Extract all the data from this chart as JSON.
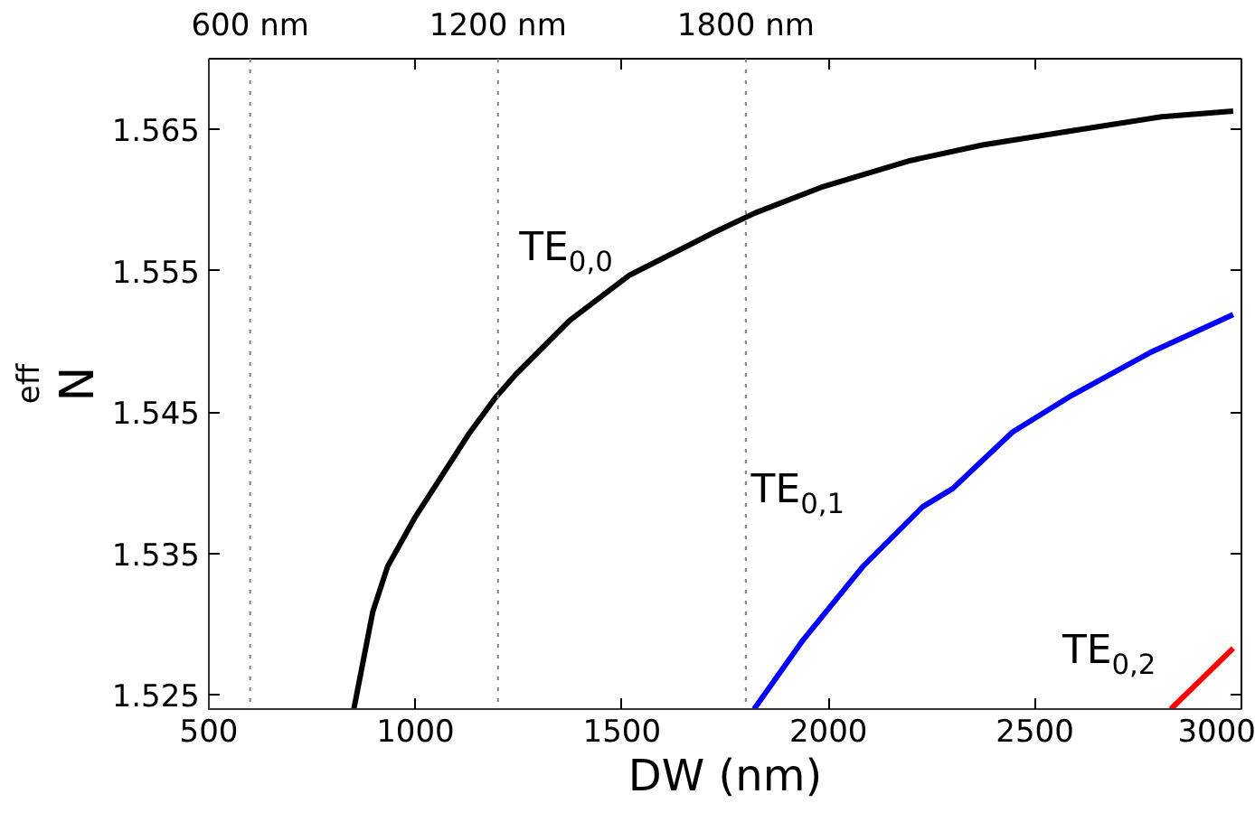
{
  "chart_data": {
    "type": "line",
    "xlabel": "DW (nm)",
    "ylabel": "N$_{eff}$",
    "xlim": [
      500,
      3000
    ],
    "xticks": [
      500,
      1000,
      1500,
      2000,
      2500,
      3000
    ],
    "ylim": [
      1.524,
      1.57
    ],
    "yticks": [
      1.525,
      1.535,
      1.545,
      1.555,
      1.565
    ],
    "grid": false,
    "line_style": "solid",
    "marker": "none",
    "series": [
      {
        "color": "#000000",
        "x": [
          851,
          897,
          933,
          998,
          1128,
          1193,
          1244,
          1374,
          1519,
          1722,
          1823,
          1982,
          2199,
          2373,
          2590,
          2807,
          2980
        ],
        "values": [
          1.524,
          1.5309,
          1.5341,
          1.5375,
          1.5434,
          1.546,
          1.5477,
          1.5515,
          1.5547,
          1.5577,
          1.5591,
          1.5609,
          1.5628,
          1.5639,
          1.5649,
          1.5659,
          1.5663
        ]
      },
      {
        "color": "#0000ff",
        "x": [
          1820,
          1939,
          2084,
          2228,
          2301,
          2446,
          2590,
          2778,
          2980
        ],
        "values": [
          1.524,
          1.5289,
          1.5341,
          1.5383,
          1.5396,
          1.5436,
          1.5462,
          1.5492,
          1.5519
        ]
      },
      {
        "color": "#ff0000",
        "x": [
          2829,
          2980
        ],
        "values": [
          1.524,
          1.5283
        ]
      }
    ],
    "ref_lines": [
      {
        "axis": "x",
        "value": 600,
        "label": "600 nm",
        "color": "#808080",
        "line_style": "dotted"
      },
      {
        "axis": "x",
        "value": 1200,
        "label": "1200 nm",
        "color": "#808080",
        "line_style": "dotted"
      },
      {
        "axis": "x",
        "value": 1800,
        "label": "1800 nm",
        "color": "#808080",
        "line_style": "dotted"
      }
    ],
    "annotations": [
      "TE$_{0,0}$",
      "TE$_{0,1}$",
      "TE$_{0,2}$"
    ]
  }
}
